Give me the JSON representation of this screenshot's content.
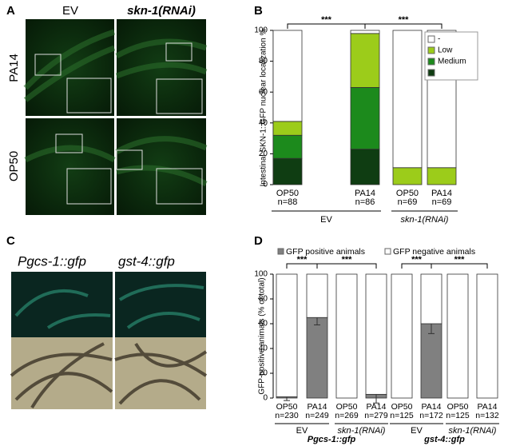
{
  "panel_labels": [
    "A",
    "B",
    "C",
    "D"
  ],
  "panel_a": {
    "columns": [
      "EV",
      "skn-1(RNAi)"
    ],
    "rows": [
      "PA14",
      "OP50"
    ]
  },
  "panel_c": {
    "columns": [
      "Pgcs-1::gfp",
      "gst-4::gfp"
    ]
  },
  "chart_data": [
    {
      "type": "stacked_bar",
      "ylabel": "Intestinal SKN-1::GFP nuclear localization %",
      "categories": [
        "OP50",
        "PA14",
        "OP50",
        "PA14"
      ],
      "category_counts": [
        "n=88",
        "n=86",
        "n=69",
        "n=69"
      ],
      "groups": [
        "EV",
        "skn-1(RNAi)"
      ],
      "series": [
        {
          "name": null,
          "color": "#0f3d12",
          "values": [
            17,
            23,
            0,
            0
          ]
        },
        {
          "name": "Medium",
          "color": "#1c8a1c",
          "values": [
            15,
            40,
            0,
            0
          ]
        },
        {
          "name": "Low",
          "color": "#9ccc1a",
          "values": [
            9,
            35,
            11,
            11
          ]
        },
        {
          "name": "-",
          "color": "#ffffff",
          "values": [
            59,
            2,
            89,
            89
          ]
        }
      ],
      "ylim": [
        0,
        100
      ],
      "yticks": [
        0,
        20,
        40,
        60,
        80,
        100
      ],
      "significance": [
        {
          "label": "***",
          "between": [
            0,
            1
          ]
        },
        {
          "label": "***",
          "between": [
            1,
            3
          ]
        }
      ],
      "legend": "top-right"
    },
    {
      "type": "stacked_bar",
      "ylabel": "GFP-positive animals (% of total)",
      "categories": [
        "OP50",
        "PA14",
        "OP50",
        "PA14",
        "OP50",
        "PA14",
        "OP50",
        "PA14"
      ],
      "category_counts": [
        "n=230",
        "n=249",
        "n=269",
        "n=279",
        "n=125",
        "n=172",
        "n=125",
        "n=132"
      ],
      "groups": [
        "EV",
        "skn-1(RNAi)",
        "EV",
        "skn-1(RNAi)"
      ],
      "supergroups": [
        "Pgcs-1::gfp",
        "gst-4::gfp"
      ],
      "series": [
        {
          "name": "GFP positive animals",
          "color": "#808080",
          "values": [
            1,
            65,
            0,
            3,
            0,
            60,
            0,
            0
          ],
          "errors": [
            3,
            6,
            null,
            7,
            null,
            8,
            null,
            null
          ]
        },
        {
          "name": "GFP negative animals",
          "color": "#ffffff",
          "values": [
            99,
            35,
            100,
            97,
            100,
            40,
            100,
            100
          ]
        }
      ],
      "ylim": [
        0,
        100
      ],
      "yticks": [
        0,
        20,
        40,
        60,
        80,
        100
      ],
      "significance": [
        {
          "label": "***",
          "between": [
            0,
            1
          ]
        },
        {
          "label": "***",
          "between": [
            1,
            3
          ]
        },
        {
          "label": "***",
          "between": [
            4,
            5
          ]
        },
        {
          "label": "***",
          "between": [
            5,
            7
          ]
        }
      ],
      "legend": "top"
    }
  ]
}
